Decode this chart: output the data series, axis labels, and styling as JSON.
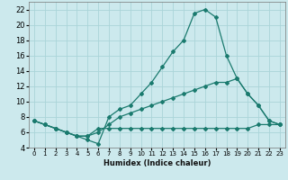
{
  "xlabel": "Humidex (Indice chaleur)",
  "bg_color": "#cce9ed",
  "line_color": "#1a7a6e",
  "grid_color": "#aad4d8",
  "xlim": [
    -0.5,
    23.5
  ],
  "ylim": [
    4,
    23
  ],
  "yticks": [
    4,
    6,
    8,
    10,
    12,
    14,
    16,
    18,
    20,
    22
  ],
  "xticks": [
    0,
    1,
    2,
    3,
    4,
    5,
    6,
    7,
    8,
    9,
    10,
    11,
    12,
    13,
    14,
    15,
    16,
    17,
    18,
    19,
    20,
    21,
    22,
    23
  ],
  "series": [
    {
      "x": [
        0,
        1,
        2,
        3,
        4,
        5,
        6,
        7,
        8,
        9,
        10,
        11,
        12,
        13,
        14,
        15,
        16,
        17,
        18,
        19,
        20,
        21,
        22,
        23
      ],
      "y": [
        7.5,
        7.0,
        6.5,
        6.0,
        5.5,
        5.5,
        6.5,
        6.5,
        6.5,
        6.5,
        6.5,
        6.5,
        6.5,
        6.5,
        6.5,
        6.5,
        6.5,
        6.5,
        6.5,
        6.5,
        6.5,
        7.0,
        7.0,
        7.0
      ]
    },
    {
      "x": [
        0,
        1,
        2,
        3,
        4,
        5,
        6,
        7,
        8,
        9,
        10,
        11,
        12,
        13,
        14,
        15,
        16,
        17,
        18,
        19,
        20,
        21,
        22,
        23
      ],
      "y": [
        7.5,
        7.0,
        6.5,
        6.0,
        5.5,
        5.5,
        6.0,
        7.0,
        8.0,
        8.5,
        9.0,
        9.5,
        10.0,
        10.5,
        11.0,
        11.5,
        12.0,
        12.5,
        12.5,
        13.0,
        11.0,
        9.5,
        7.5,
        7.0
      ]
    },
    {
      "x": [
        0,
        1,
        2,
        3,
        4,
        5,
        6,
        7,
        8,
        9,
        10,
        11,
        12,
        13,
        14,
        15,
        16,
        17,
        18,
        19,
        20,
        21,
        22,
        23
      ],
      "y": [
        7.5,
        7.0,
        6.5,
        6.0,
        5.5,
        5.0,
        4.5,
        8.0,
        9.0,
        9.5,
        11.0,
        12.5,
        14.5,
        16.5,
        18.0,
        21.5,
        22.0,
        21.0,
        16.0,
        13.0,
        11.0,
        9.5,
        7.5,
        7.0
      ]
    }
  ]
}
